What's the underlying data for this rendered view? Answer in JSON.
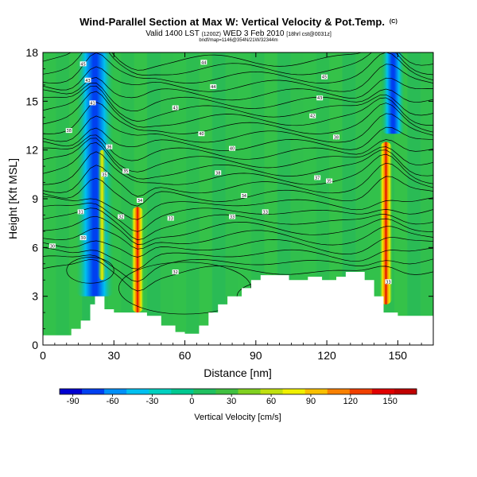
{
  "header": {
    "title": "Wind-Parallel Section at Max W: Vertical Velocity & Pot.Temp.",
    "title_suffix": "(C)",
    "valid": "Valid 1400 LST",
    "valid_utc": "(1200Z)",
    "valid_date": "WED 3 Feb 2010",
    "forecast": "[18hrl cst@0031z]",
    "bounds": "bndf/map=1146@354N/21W/32344m"
  },
  "chart_data": {
    "type": "heatmap",
    "title": "Wind-Parallel Section at Max W: Vertical Velocity & Pot.Temp.",
    "xlabel": "Distance [nm]",
    "ylabel": "Height [Kft MSL]",
    "xlim": [
      0,
      165
    ],
    "ylim": [
      0,
      18
    ],
    "xticks": [
      0,
      30,
      60,
      90,
      120,
      150
    ],
    "yticks": [
      0,
      3,
      6,
      9,
      12,
      15,
      18
    ],
    "colorbar": {
      "label": "Vertical Velocity [cm/s]",
      "ticks": [
        -90,
        -60,
        -30,
        0,
        30,
        60,
        90,
        120,
        150
      ],
      "range": [
        -100,
        170
      ]
    },
    "colorscale": [
      "#0000d0",
      "#0040f0",
      "#0090f8",
      "#00c0f0",
      "#00d0c0",
      "#00c890",
      "#20c060",
      "#40c040",
      "#80d020",
      "#c0e010",
      "#f0f000",
      "#f8c000",
      "#f88000",
      "#f04000",
      "#e00000",
      "#c00000"
    ],
    "updrafts": [
      {
        "x": 40,
        "y_min": 2,
        "y_max": 8.5,
        "peak": 150
      },
      {
        "x": 145,
        "y_min": 2.5,
        "y_max": 12.5,
        "peak": 160
      },
      {
        "x": 25,
        "y_min": 4,
        "y_max": 12,
        "peak": 50
      }
    ],
    "downdrafts": [
      {
        "x": 22,
        "y_min": 3,
        "y_max": 18,
        "peak": -90
      },
      {
        "x": 148,
        "y_min": 13,
        "y_max": 18,
        "peak": -50
      }
    ],
    "terrain": [
      [
        0,
        0.6
      ],
      [
        8,
        0.6
      ],
      [
        12,
        1
      ],
      [
        16,
        1.5
      ],
      [
        20,
        2.5
      ],
      [
        22,
        3
      ],
      [
        26,
        2.2
      ],
      [
        30,
        2
      ],
      [
        38,
        2
      ],
      [
        44,
        1.8
      ],
      [
        50,
        1.2
      ],
      [
        56,
        0.8
      ],
      [
        60,
        0.7
      ],
      [
        66,
        1.2
      ],
      [
        70,
        2
      ],
      [
        74,
        2.5
      ],
      [
        78,
        3
      ],
      [
        84,
        3.5
      ],
      [
        88,
        4
      ],
      [
        92,
        4.3
      ],
      [
        100,
        4.3
      ],
      [
        104,
        4
      ],
      [
        112,
        4.2
      ],
      [
        118,
        4
      ],
      [
        124,
        4.2
      ],
      [
        128,
        4.5
      ],
      [
        132,
        4.5
      ],
      [
        136,
        4
      ],
      [
        140,
        3
      ],
      [
        144,
        2
      ],
      [
        150,
        1.8
      ],
      [
        156,
        1.8
      ],
      [
        165,
        1.8
      ]
    ],
    "theta_labels": [
      {
        "x": 17,
        "y": 17.3,
        "text": "45"
      },
      {
        "x": 19,
        "y": 16.3,
        "text": "43"
      },
      {
        "x": 21,
        "y": 14.9,
        "text": "41"
      },
      {
        "x": 11,
        "y": 13.2,
        "text": "38"
      },
      {
        "x": 28,
        "y": 12.2,
        "text": "36"
      },
      {
        "x": 26,
        "y": 10.5,
        "text": "35"
      },
      {
        "x": 35,
        "y": 10.7,
        "text": "35"
      },
      {
        "x": 41,
        "y": 8.9,
        "text": "34"
      },
      {
        "x": 33,
        "y": 7.9,
        "text": "32"
      },
      {
        "x": 16,
        "y": 8.2,
        "text": "31"
      },
      {
        "x": 17,
        "y": 6.6,
        "text": "30"
      },
      {
        "x": 4,
        "y": 6.1,
        "text": "30"
      },
      {
        "x": 68,
        "y": 17.4,
        "text": "44"
      },
      {
        "x": 72,
        "y": 15.9,
        "text": "44"
      },
      {
        "x": 56,
        "y": 14.6,
        "text": "43"
      },
      {
        "x": 67,
        "y": 13.0,
        "text": "40"
      },
      {
        "x": 80,
        "y": 12.1,
        "text": "40"
      },
      {
        "x": 74,
        "y": 10.6,
        "text": "38"
      },
      {
        "x": 85,
        "y": 9.2,
        "text": "34"
      },
      {
        "x": 54,
        "y": 7.8,
        "text": "33"
      },
      {
        "x": 80,
        "y": 7.9,
        "text": "33"
      },
      {
        "x": 94,
        "y": 8.2,
        "text": "33"
      },
      {
        "x": 56,
        "y": 4.5,
        "text": "32"
      },
      {
        "x": 119,
        "y": 16.5,
        "text": "45"
      },
      {
        "x": 117,
        "y": 15.2,
        "text": "43"
      },
      {
        "x": 114,
        "y": 14.1,
        "text": "42"
      },
      {
        "x": 124,
        "y": 12.8,
        "text": "38"
      },
      {
        "x": 116,
        "y": 10.3,
        "text": "37"
      },
      {
        "x": 121,
        "y": 10.1,
        "text": "35"
      },
      {
        "x": 146,
        "y": 3.9,
        "text": "33"
      }
    ]
  }
}
